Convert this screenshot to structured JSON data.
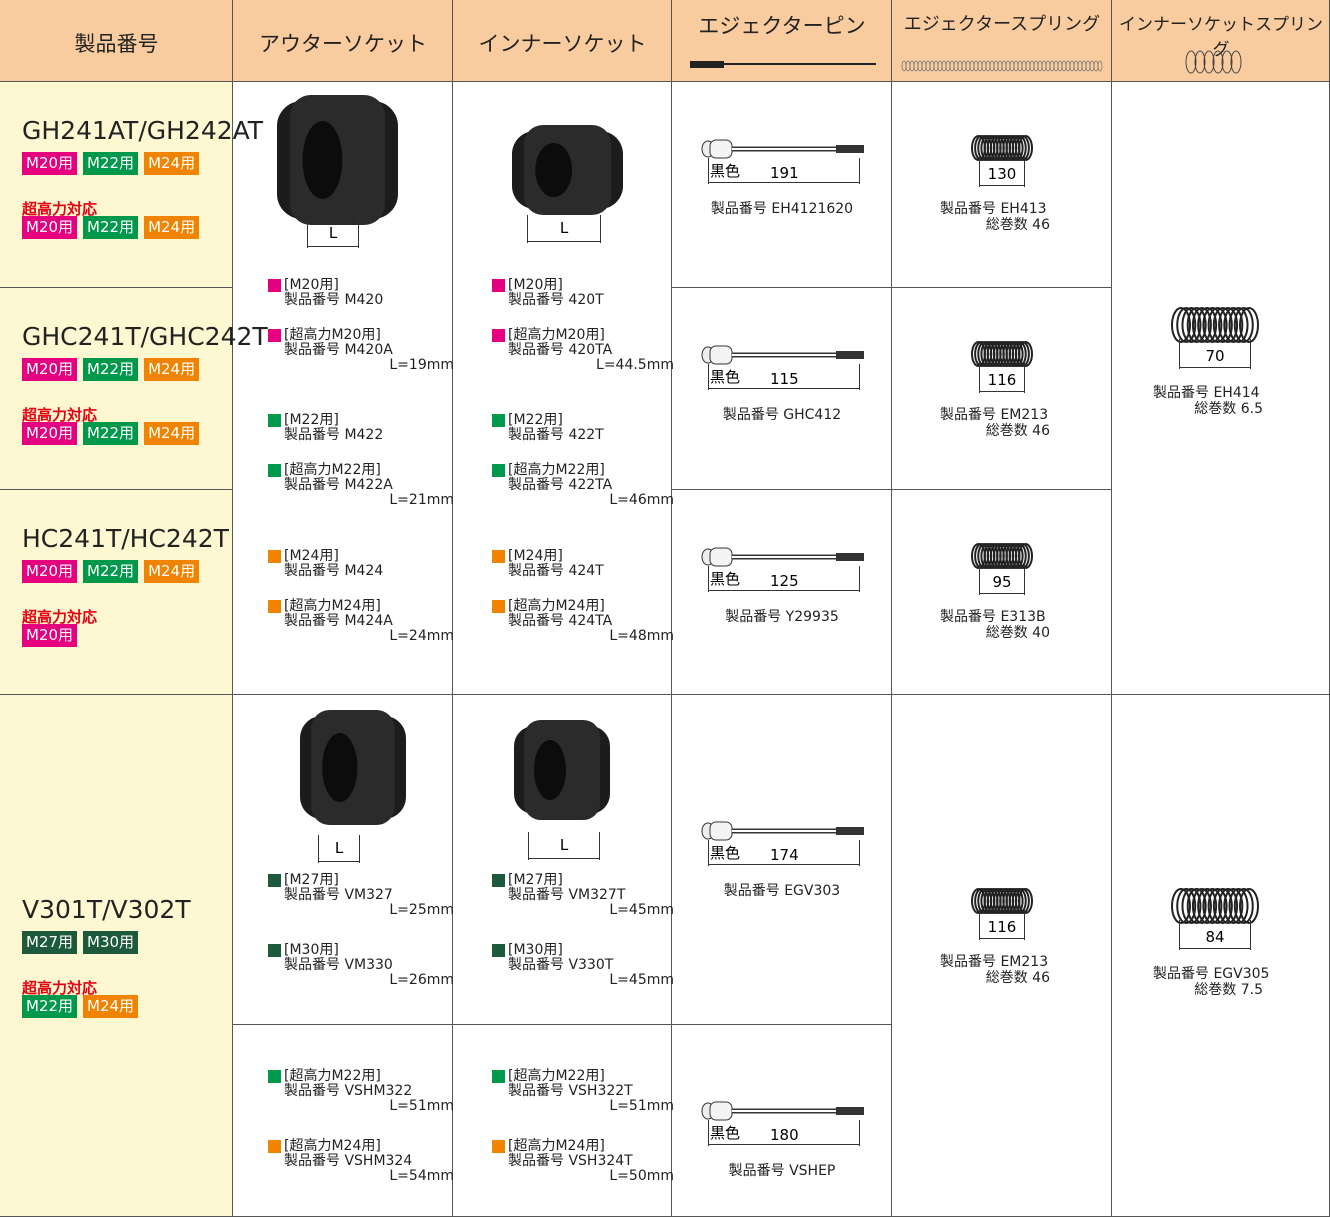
{
  "header": [
    "製品番号",
    "アウターソケット",
    "インナーソケット",
    "エジェクターピン",
    "エジェクタースプリング",
    "インナーソケットスプリング"
  ],
  "group1": {
    "models": [
      {
        "name": "GH241AT/GH242AT",
        "sizes": [
          {
            "label": "M20用",
            "color": "#e4007f"
          },
          {
            "label": "M22用",
            "color": "#00984a"
          },
          {
            "label": "M24用",
            "color": "#f08300"
          }
        ],
        "high_label": "超高力対応",
        "high_sizes": [
          {
            "label": "M20用",
            "color": "#e4007f"
          },
          {
            "label": "M22用",
            "color": "#00984a"
          },
          {
            "label": "M24用",
            "color": "#f08300"
          }
        ]
      },
      {
        "name": "GHC241T/GHC242T",
        "sizes": [
          {
            "label": "M20用",
            "color": "#e4007f"
          },
          {
            "label": "M22用",
            "color": "#00984a"
          },
          {
            "label": "M24用",
            "color": "#f08300"
          }
        ],
        "high_label": "超高力対応",
        "high_sizes": [
          {
            "label": "M20用",
            "color": "#e4007f"
          },
          {
            "label": "M22用",
            "color": "#00984a"
          },
          {
            "label": "M24用",
            "color": "#f08300"
          }
        ]
      },
      {
        "name": "HC241T/HC242T",
        "sizes": [
          {
            "label": "M20用",
            "color": "#e4007f"
          },
          {
            "label": "M22用",
            "color": "#00984a"
          },
          {
            "label": "M24用",
            "color": "#f08300"
          }
        ],
        "high_label": "超高力対応",
        "high_sizes": [
          {
            "label": "M20用",
            "color": "#e4007f"
          }
        ]
      }
    ],
    "outer": {
      "dim": "L",
      "items": [
        {
          "size": "[M20用]",
          "part": "製品番号 M420",
          "color": "#e4007f"
        },
        {
          "size": "[超高力M20用]",
          "part": "製品番号 M420A",
          "length": "L=19mm",
          "color": "#e4007f"
        },
        {
          "size": "[M22用]",
          "part": "製品番号 M422",
          "color": "#00984a"
        },
        {
          "size": "[超高力M22用]",
          "part": "製品番号 M422A",
          "length": "L=21mm",
          "color": "#00984a"
        },
        {
          "size": "[M24用]",
          "part": "製品番号 M424",
          "color": "#f08300"
        },
        {
          "size": "[超高力M24用]",
          "part": "製品番号 M424A",
          "length": "L=24mm",
          "color": "#f08300"
        }
      ]
    },
    "inner": {
      "dim": "L",
      "items": [
        {
          "size": "[M20用]",
          "part": "製品番号 420T",
          "color": "#e4007f"
        },
        {
          "size": "[超高力M20用]",
          "part": "製品番号 420TA",
          "length": "L=44.5mm",
          "color": "#e4007f"
        },
        {
          "size": "[M22用]",
          "part": "製品番号 422T",
          "color": "#00984a"
        },
        {
          "size": "[超高力M22用]",
          "part": "製品番号 422TA",
          "length": "L=46mm",
          "color": "#00984a"
        },
        {
          "size": "[M24用]",
          "part": "製品番号 424T",
          "color": "#f08300"
        },
        {
          "size": "[超高力M24用]",
          "part": "製品番号 424TA",
          "length": "L=48mm",
          "color": "#f08300"
        }
      ]
    },
    "pins": [
      {
        "color_label": "黒色",
        "length": "191",
        "part": "製品番号 EH4121620"
      },
      {
        "color_label": "黒色",
        "length": "115",
        "part": "製品番号 GHC412"
      },
      {
        "color_label": "黒色",
        "length": "125",
        "part": "製品番号 Y29935"
      }
    ],
    "ejector_springs": [
      {
        "length": "130",
        "part": "製品番号 EH413",
        "turns": "総巻数 46"
      },
      {
        "length": "116",
        "part": "製品番号 EM213",
        "turns": "総巻数 46"
      },
      {
        "length": "95",
        "part": "製品番号 E313B",
        "turns": "総巻数 40"
      }
    ],
    "inner_spring": {
      "length": "70",
      "part": "製品番号 EH414",
      "turns": "総巻数 6.5"
    }
  },
  "group2": {
    "model": {
      "name": "V301T/V302T",
      "sizes": [
        {
          "label": "M27用",
          "color": "#1d5a3b"
        },
        {
          "label": "M30用",
          "color": "#1d5a3b"
        }
      ],
      "high_label": "超高力対応",
      "high_sizes": [
        {
          "label": "M22用",
          "color": "#00984a"
        },
        {
          "label": "M24用",
          "color": "#f08300"
        }
      ]
    },
    "outer": {
      "dim": "L",
      "items": [
        {
          "size": "[M27用]",
          "part": "製品番号 VM327",
          "length": "L=25mm",
          "color": "#1d5a3b"
        },
        {
          "size": "[M30用]",
          "part": "製品番号 VM330",
          "length": "L=26mm",
          "color": "#1d5a3b"
        }
      ],
      "high_items": [
        {
          "size": "[超高力M22用]",
          "part": "製品番号 VSHM322",
          "length": "L=51mm",
          "color": "#00984a"
        },
        {
          "size": "[超高力M24用]",
          "part": "製品番号 VSHM324",
          "length": "L=54mm",
          "color": "#f08300"
        }
      ]
    },
    "inner": {
      "dim": "L",
      "items": [
        {
          "size": "[M27用]",
          "part": "製品番号 VM327T",
          "length": "L=45mm",
          "color": "#1d5a3b"
        },
        {
          "size": "[M30用]",
          "part": "製品番号 V330T",
          "length": "L=45mm",
          "color": "#1d5a3b"
        }
      ],
      "high_items": [
        {
          "size": "[超高力M22用]",
          "part": "製品番号 VSH322T",
          "length": "L=51mm",
          "color": "#00984a"
        },
        {
          "size": "[超高力M24用]",
          "part": "製品番号 VSH324T",
          "length": "L=50mm",
          "color": "#f08300"
        }
      ]
    },
    "pins": [
      {
        "color_label": "黒色",
        "length": "174",
        "part": "製品番号 EGV303"
      },
      {
        "color_label": "黒色",
        "length": "180",
        "part": "製品番号 VSHEP"
      }
    ],
    "ejector_spring": {
      "length": "116",
      "part": "製品番号 EM213",
      "turns": "総巻数 46"
    },
    "inner_spring": {
      "length": "84",
      "part": "製品番号 EGV305",
      "turns": "総巻数 7.5"
    }
  }
}
